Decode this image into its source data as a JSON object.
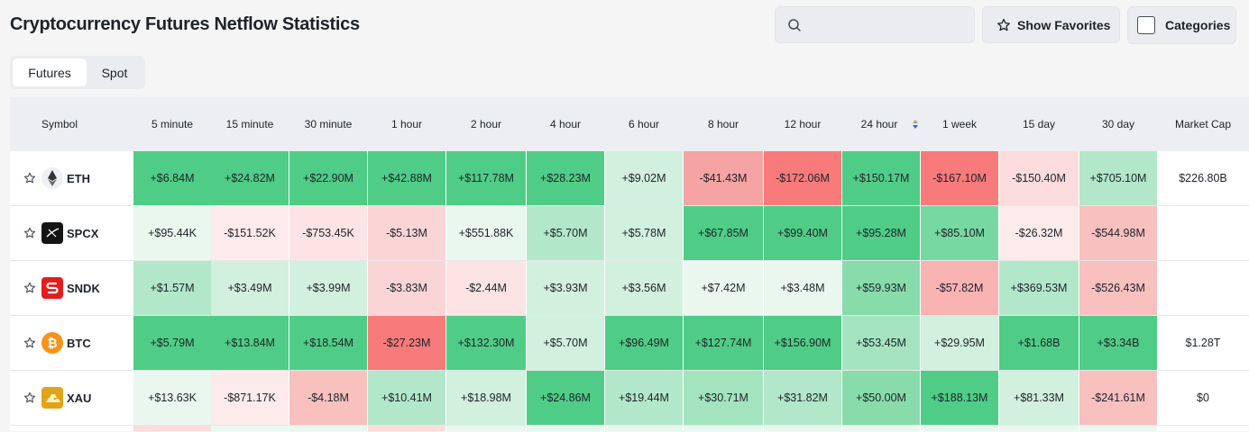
{
  "header": {
    "title": "Cryptocurrency Futures Netflow Statistics",
    "search": {
      "placeholder": "",
      "value": "",
      "icon": "search-icon"
    },
    "show_favorites_label": "Show Favorites",
    "categories_label": "Categories"
  },
  "tabs": [
    {
      "label": "Futures",
      "active": true
    },
    {
      "label": "Spot",
      "active": false
    }
  ],
  "table": {
    "columns": [
      "Symbol",
      "5 minute",
      "15 minute",
      "30 minute",
      "1 hour",
      "2 hour",
      "4 hour",
      "6 hour",
      "8 hour",
      "12 hour",
      "24 hour",
      "1 week",
      "15 day",
      "30 day",
      "Market Cap"
    ],
    "sorted_column": "24 hour",
    "rows": [
      {
        "symbol": "ETH",
        "icon": "eth-icon",
        "values": [
          "+$6.84M",
          "+$24.82M",
          "+$22.90M",
          "+$42.88M",
          "+$117.78M",
          "+$28.23M",
          "+$9.02M",
          "-$41.43M",
          "-$172.06M",
          "+$150.17M",
          "-$167.10M",
          "-$150.40M",
          "+$705.10M"
        ],
        "colors": [
          "#4fcd86",
          "#4fcd86",
          "#4fcd86",
          "#4fcd86",
          "#4fcd86",
          "#4fcd86",
          "#d1f0de",
          "#f5a3a3",
          "#f87a7a",
          "#4fcd86",
          "#f87a7a",
          "#fcdcdc",
          "#b2e8c9"
        ],
        "market_cap": "$226.80B"
      },
      {
        "symbol": "SPCX",
        "icon": "spcx-icon",
        "values": [
          "+$95.44K",
          "-$151.52K",
          "-$753.45K",
          "-$5.13M",
          "+$551.88K",
          "+$5.70M",
          "+$5.78M",
          "+$67.85M",
          "+$99.40M",
          "+$95.28M",
          "+$85.10M",
          "-$26.32M",
          "-$544.98M"
        ],
        "colors": [
          "#eaf7ef",
          "#fdeaea",
          "#fde4e4",
          "#fbd5d5",
          "#eaf7ef",
          "#b2e8c9",
          "#d1f0de",
          "#4fcd86",
          "#4fcd86",
          "#4fcd86",
          "#77d8a1",
          "#fdeaea",
          "#f9c0c0"
        ],
        "market_cap": ""
      },
      {
        "symbol": "SNDK",
        "icon": "sndk-icon",
        "values": [
          "+$1.57M",
          "+$3.49M",
          "+$3.99M",
          "-$3.83M",
          "-$2.44M",
          "+$3.93M",
          "+$3.56M",
          "+$7.42M",
          "+$3.48M",
          "+$59.93M",
          "-$57.82M",
          "+$369.53M",
          "-$526.43M"
        ],
        "colors": [
          "#b2e8c9",
          "#d1f0de",
          "#d1f0de",
          "#fbd5d5",
          "#fde4e4",
          "#d1f0de",
          "#d1f0de",
          "#eaf7ef",
          "#eaf7ef",
          "#88dcab",
          "#f9b3b3",
          "#b2e8c9",
          "#f9c0c0"
        ],
        "market_cap": ""
      },
      {
        "symbol": "BTC",
        "icon": "btc-icon",
        "values": [
          "+$5.79M",
          "+$13.84M",
          "+$18.54M",
          "-$27.23M",
          "+$132.30M",
          "+$5.70M",
          "+$96.49M",
          "+$127.74M",
          "+$156.90M",
          "+$53.45M",
          "+$29.95M",
          "+$1.68B",
          "+$3.34B"
        ],
        "colors": [
          "#4fcd86",
          "#4fcd86",
          "#4fcd86",
          "#f87a7a",
          "#4fcd86",
          "#d1f0de",
          "#4fcd86",
          "#4fcd86",
          "#4fcd86",
          "#a3e4bf",
          "#d1f0de",
          "#4fcd86",
          "#4fcd86"
        ],
        "market_cap": "$1.28T"
      },
      {
        "symbol": "XAU",
        "icon": "xau-icon",
        "values": [
          "+$13.63K",
          "-$871.17K",
          "-$4.18M",
          "+$10.41M",
          "+$18.98M",
          "+$24.86M",
          "+$19.44M",
          "+$30.71M",
          "+$31.82M",
          "+$50.00M",
          "+$188.13M",
          "+$81.33M",
          "-$241.61M"
        ],
        "colors": [
          "#eaf7ef",
          "#fdeaea",
          "#f9c0c0",
          "#b2e8c9",
          "#d1f0de",
          "#4fcd86",
          "#b2e8c9",
          "#a3e4bf",
          "#b2e8c9",
          "#88dcab",
          "#4fcd86",
          "#d1f0de",
          "#f9c0c0"
        ],
        "market_cap": "$0"
      }
    ],
    "partial_row_colors": [
      "#fcdcdc",
      "#eaf7ef",
      "#eaf7ef",
      "#fcdcdc",
      "#eaf7ef",
      "#eaf7ef",
      "#eaf7ef",
      "#eaf7ef",
      "#eaf7ef",
      "#eaf7ef",
      "#eaf7ef",
      "#eaf7ef",
      "#eaf7ef"
    ]
  }
}
